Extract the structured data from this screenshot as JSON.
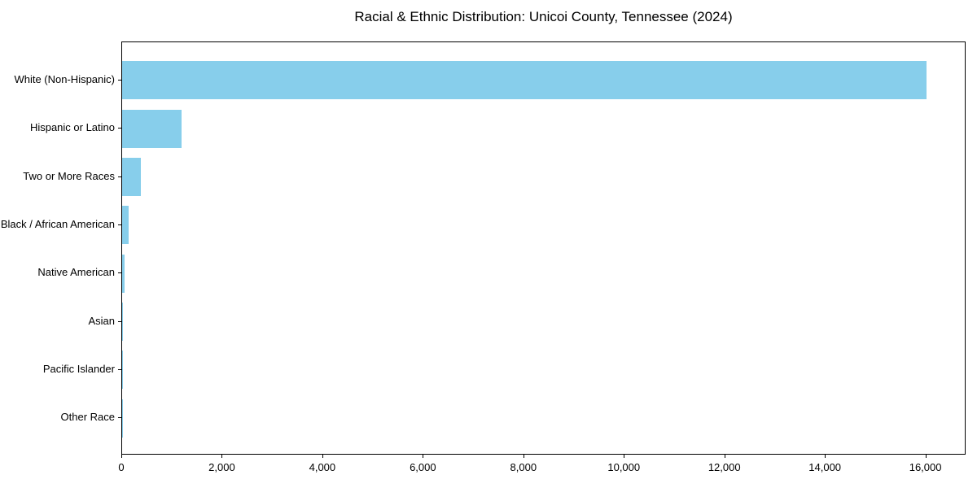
{
  "figure": {
    "title": "Racial & Ethnic Distribution: Unicoi County, Tennessee (2024)",
    "background_color": "#ffffff",
    "bar_color": "#87CEEB",
    "spine_color": "#000000",
    "text_color": "#000000"
  },
  "chart_data": {
    "type": "bar",
    "orientation": "horizontal",
    "title": "Racial & Ethnic Distribution: Unicoi County, Tennessee (2024)",
    "categories": [
      "White (Non-Hispanic)",
      "Hispanic or Latino",
      "Two or More Races",
      "Black / African American",
      "Native American",
      "Asian",
      "Pacific Islander",
      "Other Race"
    ],
    "values": [
      16000,
      1180,
      370,
      130,
      45,
      18,
      5,
      2
    ],
    "bar_color": "#87CEEB",
    "xlabel": "",
    "ylabel": "",
    "xlim": [
      0,
      16800
    ],
    "x_ticks": [
      0,
      2000,
      4000,
      6000,
      8000,
      10000,
      12000,
      14000,
      16000
    ],
    "x_tick_labels": [
      "0",
      "2,000",
      "4,000",
      "6,000",
      "8,000",
      "10,000",
      "12,000",
      "14,000",
      "16,000"
    ],
    "grid": false,
    "legend": false
  }
}
